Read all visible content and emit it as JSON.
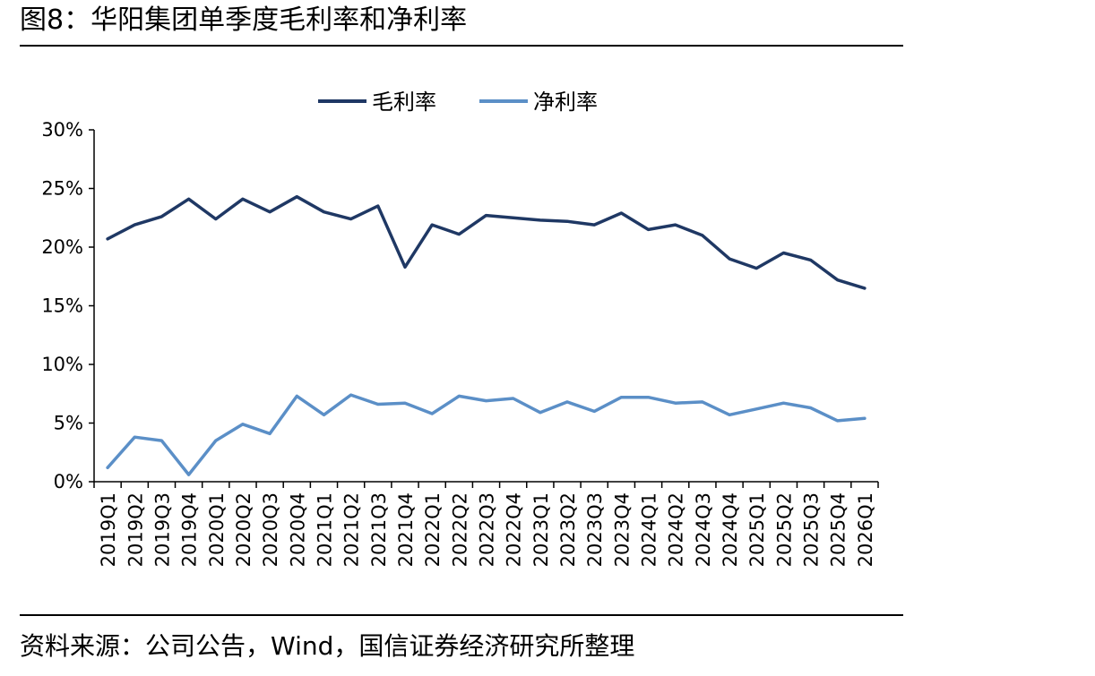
{
  "figure": {
    "title": "图8：华阳集团单季度毛利率和净利率",
    "source": "资料来源：公司公告，Wind，国信证券经济研究所整理"
  },
  "chart_data": {
    "type": "line",
    "categories": [
      "2019Q1",
      "2019Q2",
      "2019Q3",
      "2019Q4",
      "2020Q1",
      "2020Q2",
      "2020Q3",
      "2020Q4",
      "2021Q1",
      "2021Q2",
      "2021Q3",
      "2021Q4",
      "2022Q1",
      "2022Q2",
      "2022Q3",
      "2022Q4",
      "2023Q1",
      "2023Q2",
      "2023Q3",
      "2023Q4",
      "2024Q1",
      "2024Q2",
      "2024Q3",
      "2024Q4",
      "2025Q1",
      "2025Q2",
      "2025Q3",
      "2025Q4",
      "2026Q1"
    ],
    "series": [
      {
        "name": "毛利率",
        "color": "#1f3864",
        "values": [
          20.7,
          21.9,
          22.6,
          24.1,
          22.4,
          24.1,
          23.0,
          24.3,
          23.0,
          22.4,
          23.5,
          18.3,
          21.9,
          21.1,
          22.7,
          22.5,
          22.3,
          22.2,
          21.9,
          22.9,
          21.5,
          21.9,
          21.0,
          19.0,
          18.2,
          19.5,
          18.9,
          17.2,
          16.5
        ]
      },
      {
        "name": "净利率",
        "color": "#5b8fc7",
        "values": [
          1.2,
          3.8,
          3.5,
          0.6,
          3.5,
          4.9,
          4.1,
          7.3,
          5.7,
          7.4,
          6.6,
          6.7,
          5.8,
          7.3,
          6.9,
          7.1,
          5.9,
          6.8,
          6.0,
          7.2,
          7.2,
          6.7,
          6.8,
          5.7,
          6.2,
          6.7,
          6.3,
          5.2,
          5.4
        ]
      }
    ],
    "ylim": [
      0,
      30
    ],
    "yticks": [
      0,
      5,
      10,
      15,
      20,
      25,
      30
    ],
    "ytick_labels": [
      "0%",
      "5%",
      "10%",
      "15%",
      "20%",
      "25%",
      "30%"
    ],
    "xlabel": "",
    "ylabel": "",
    "legend": "top-center",
    "grid": false
  }
}
